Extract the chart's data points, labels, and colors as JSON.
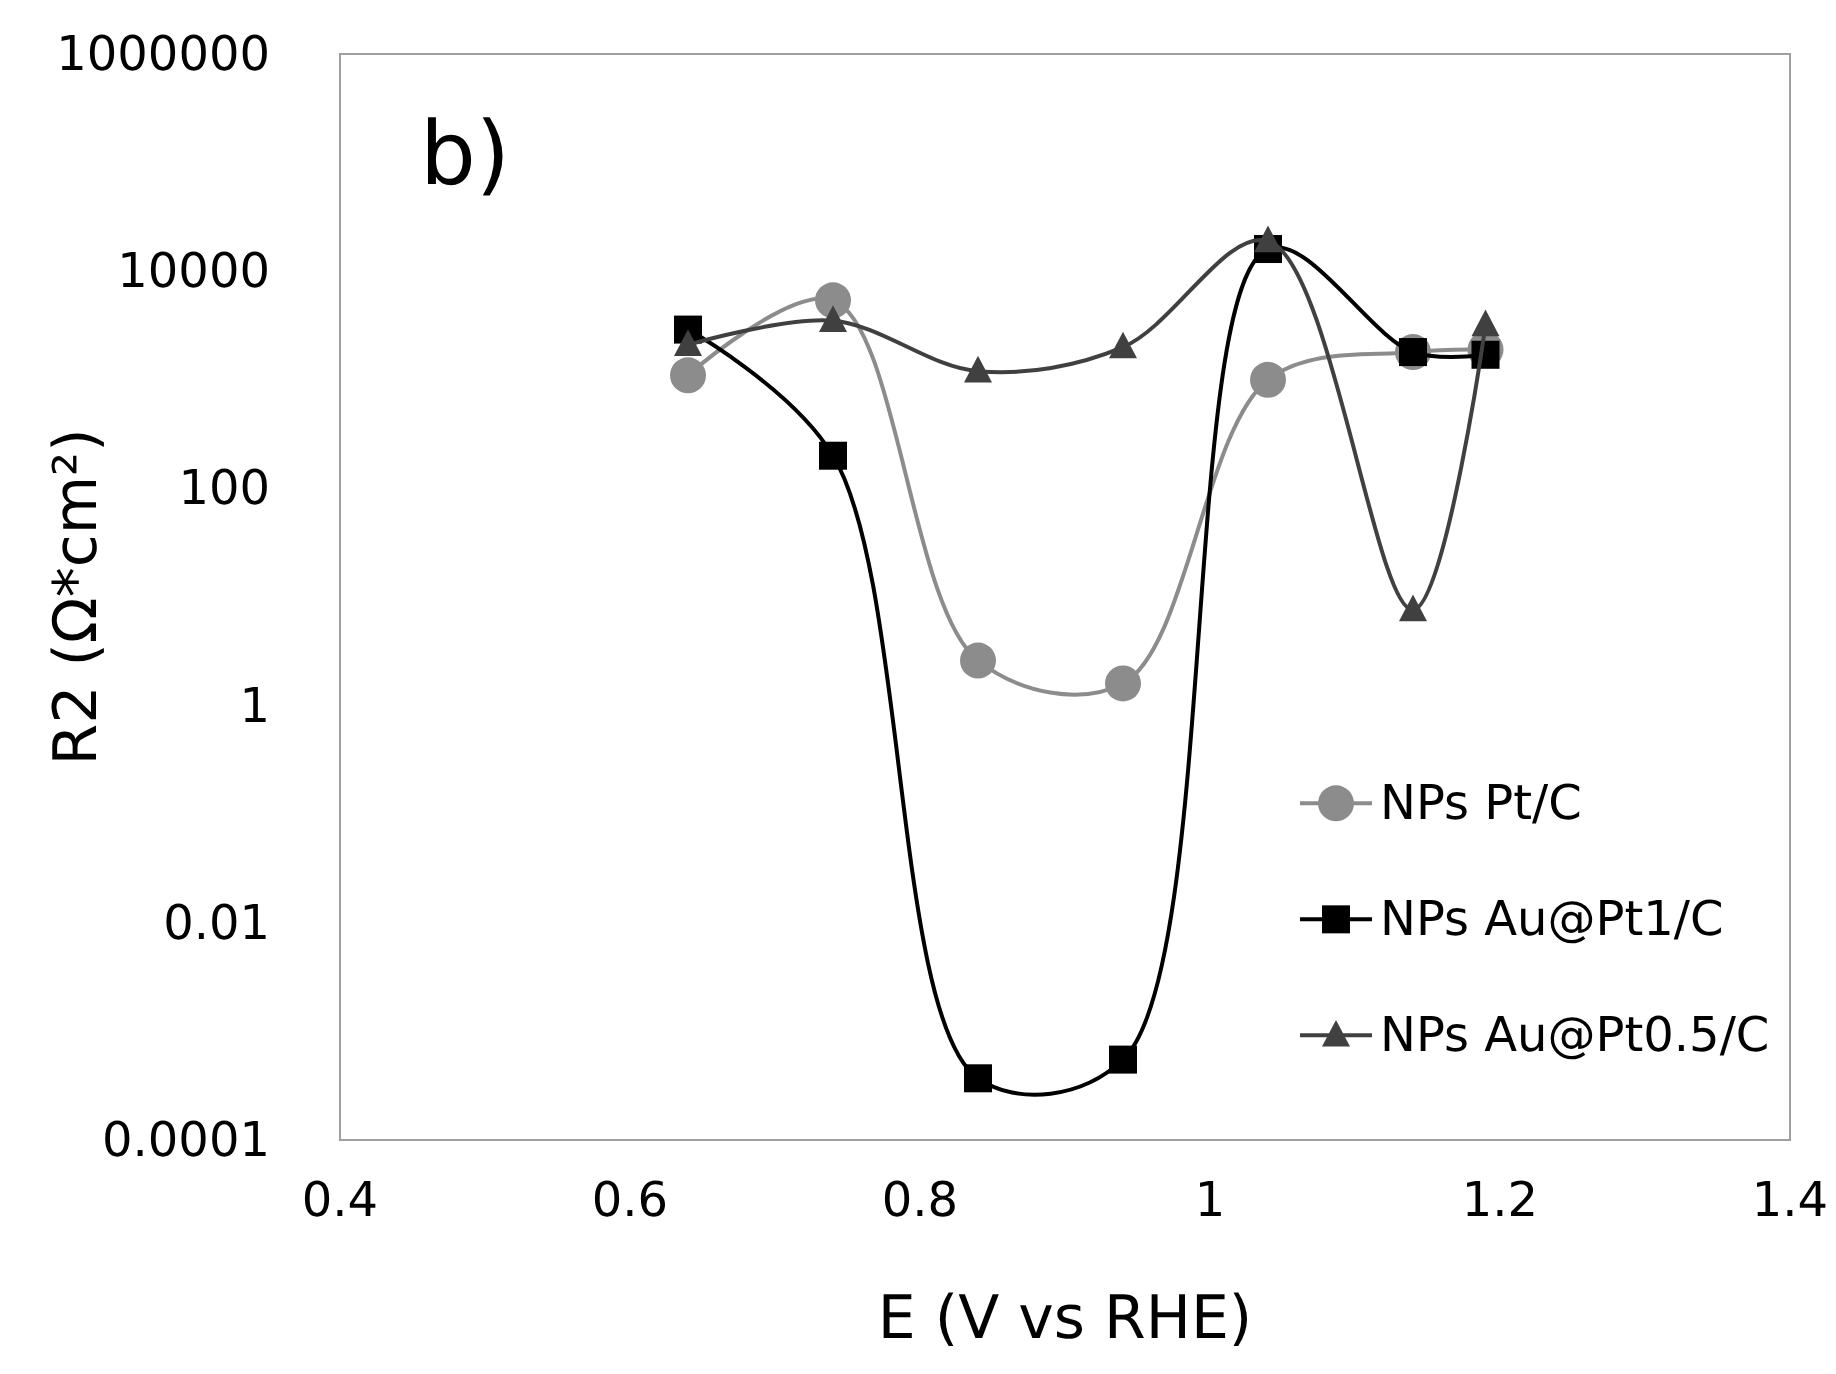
{
  "chart_data": {
    "type": "line",
    "xlabel": "E (V vs RHE)",
    "ylabel": "R2 (Ω*cm²)",
    "annotations": [
      "b)"
    ],
    "x": [
      0.64,
      0.74,
      0.84,
      0.94,
      1.04,
      1.14,
      1.19
    ],
    "log": "y",
    "xlim": [
      0.4,
      1.4
    ],
    "xticks": [
      0.4,
      0.6,
      0.8,
      1,
      1.2,
      1.4
    ],
    "ylim": [
      0.0001,
      1000000
    ],
    "yticks": [
      0.0001,
      0.01,
      1,
      100,
      10000,
      1000000
    ],
    "grid": false,
    "legend": "right",
    "series": [
      {
        "name": "NPs Pt/C",
        "color": "#8c8c8c",
        "marker": "circle",
        "values": [
          1100,
          5400,
          2.6,
          1.6,
          1000,
          1800,
          1900
        ]
      },
      {
        "name": "NPs Au@Pt1/C",
        "color": "#000000",
        "marker": "square",
        "values": [
          2900,
          200,
          0.00037,
          0.00055,
          16000,
          1800,
          1700
        ]
      },
      {
        "name": "NPs Au@Pt0.5/C",
        "color": "#404040",
        "marker": "triangle",
        "values": [
          2100,
          3500,
          1200,
          2000,
          19000,
          7.6,
          3200
        ]
      }
    ]
  }
}
